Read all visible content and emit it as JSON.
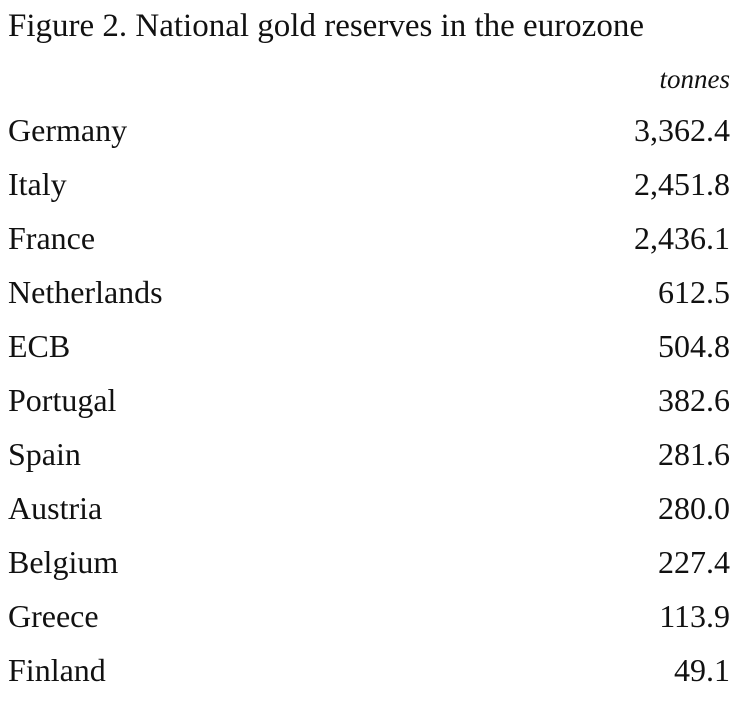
{
  "title": "Figure 2. National gold reserves in the eurozone",
  "unit": "tonnes",
  "table": {
    "rows": [
      [
        "Germany",
        "3,362.4"
      ],
      [
        "Italy",
        "2,451.8"
      ],
      [
        "France",
        "2,436.1"
      ],
      [
        "Netherlands",
        "612.5"
      ],
      [
        "ECB",
        "504.8"
      ],
      [
        "Portugal",
        "382.6"
      ],
      [
        "Spain",
        "281.6"
      ],
      [
        "Austria",
        "280.0"
      ],
      [
        "Belgium",
        "227.4"
      ],
      [
        "Greece",
        "113.9"
      ],
      [
        "Finland",
        "49.1"
      ]
    ]
  }
}
